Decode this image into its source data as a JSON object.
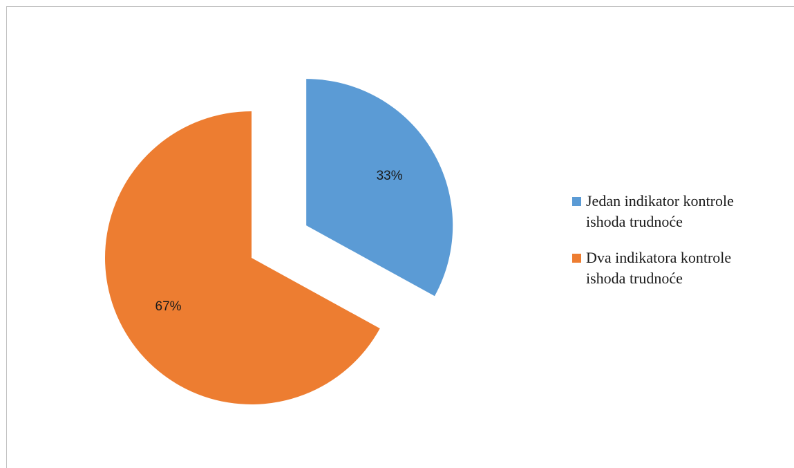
{
  "chart_data": {
    "type": "pie",
    "title": "",
    "categories": [
      "Jedan indikator kontrole ishoda trudnoće",
      "Dva indikatora kontrole ishoda trudnoće"
    ],
    "values": [
      33,
      67
    ],
    "value_labels": [
      "33%",
      "67%"
    ],
    "colors": [
      "#5b9bd5",
      "#ed7d31"
    ],
    "exploded": [
      true,
      false
    ],
    "start_angle_deg": 0,
    "direction": "clockwise",
    "legend_position": "right"
  },
  "legend": {
    "items": [
      {
        "label_line1": "Jedan indikator kontrole",
        "label_line2": "ishoda trudnoće",
        "color": "#5b9bd5"
      },
      {
        "label_line1": "Dva indikatora kontrole",
        "label_line2": "ishoda trudnoće",
        "color": "#ed7d31"
      }
    ]
  }
}
